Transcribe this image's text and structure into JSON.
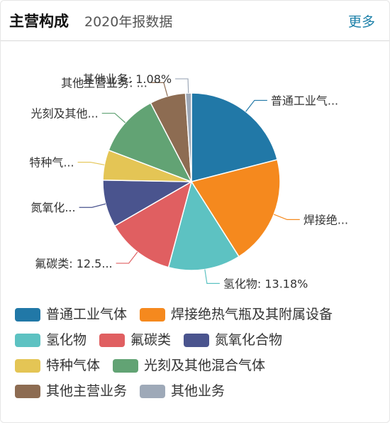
{
  "header": {
    "title": "主营构成",
    "subtitle": "2020年报数据",
    "more_label": "更多"
  },
  "chart_data": {
    "type": "pie",
    "title": "",
    "series": [
      {
        "name": "普通工业气体",
        "value": 21.0,
        "color": "#2178a7",
        "label": "普通工业气..."
      },
      {
        "name": "焊接绝热气瓶及其附属设备",
        "value": 20.0,
        "color": "#f5891e",
        "label": "焊接绝..."
      },
      {
        "name": "氢化物",
        "value": 13.18,
        "color": "#5dc2c2",
        "label": "氢化物: 13.18%"
      },
      {
        "name": "氟碳类",
        "value": 12.5,
        "color": "#e05f61",
        "label": "氟碳类: 12.5..."
      },
      {
        "name": "氮氧化合物",
        "value": 8.6,
        "color": "#4a548e",
        "label": "氮氧化..."
      },
      {
        "name": "特种气体",
        "value": 5.5,
        "color": "#e4c555",
        "label": "特种气..."
      },
      {
        "name": "光刻及其他混合气体",
        "value": 11.6,
        "color": "#62a374",
        "label": "光刻及其他..."
      },
      {
        "name": "其他主营业务",
        "value": 6.54,
        "color": "#8d6c52",
        "label": "其他主营业务: ..."
      },
      {
        "name": "其他业务",
        "value": 1.08,
        "color": "#9ea9b8",
        "label": "其他业务: 1.08%"
      }
    ],
    "legend_position": "bottom"
  },
  "legend_rows": [
    [
      0,
      1
    ],
    [
      2,
      3,
      4
    ],
    [
      5,
      6
    ],
    [
      7,
      8
    ]
  ]
}
